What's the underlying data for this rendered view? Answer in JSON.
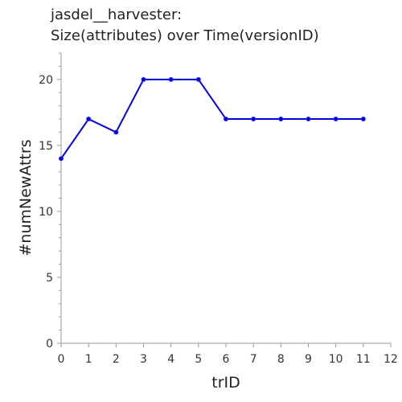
{
  "chart_data": {
    "type": "line",
    "title_lines": [
      "jasdel__harvester:",
      "Size(attributes) over Time(versionID)"
    ],
    "xlabel": "trID",
    "ylabel": "#numNewAttrs",
    "xlim": [
      0,
      12
    ],
    "ylim": [
      0,
      22
    ],
    "x_ticks": [
      0,
      1,
      2,
      3,
      4,
      5,
      6,
      7,
      8,
      9,
      10,
      11,
      12
    ],
    "y_ticks": [
      0,
      5,
      10,
      15,
      20
    ],
    "grid": false,
    "series": [
      {
        "color": "#0000dd",
        "x": [
          0,
          1,
          2,
          3,
          4,
          5,
          6,
          7,
          8,
          9,
          10,
          11
        ],
        "y": [
          14,
          17,
          16,
          20,
          20,
          20,
          17,
          17,
          17,
          17,
          17,
          17
        ]
      }
    ]
  }
}
